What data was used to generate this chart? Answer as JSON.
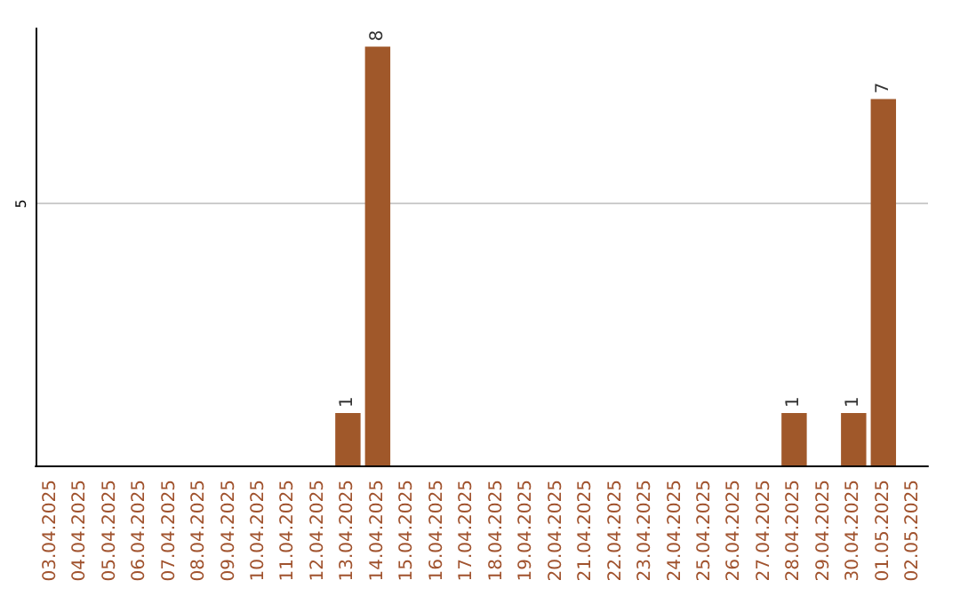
{
  "chart_data": {
    "type": "bar",
    "categories": [
      "03.04.2025",
      "04.04.2025",
      "05.04.2025",
      "06.04.2025",
      "07.04.2025",
      "08.04.2025",
      "09.04.2025",
      "10.04.2025",
      "11.04.2025",
      "12.04.2025",
      "13.04.2025",
      "14.04.2025",
      "15.04.2025",
      "16.04.2025",
      "17.04.2025",
      "18.04.2025",
      "19.04.2025",
      "20.04.2025",
      "21.04.2025",
      "22.04.2025",
      "23.04.2025",
      "24.04.2025",
      "25.04.2025",
      "26.04.2025",
      "27.04.2025",
      "28.04.2025",
      "29.04.2025",
      "30.04.2025",
      "01.05.2025",
      "02.05.2025"
    ],
    "values": [
      0,
      0,
      0,
      0,
      0,
      0,
      0,
      0,
      0,
      0,
      1,
      8,
      0,
      0,
      0,
      0,
      0,
      0,
      0,
      0,
      0,
      0,
      0,
      0,
      0,
      1,
      0,
      1,
      7,
      0
    ],
    "value_labels": [
      null,
      null,
      null,
      null,
      null,
      null,
      null,
      null,
      null,
      null,
      "1",
      "8",
      null,
      null,
      null,
      null,
      null,
      null,
      null,
      null,
      null,
      null,
      null,
      null,
      null,
      "1",
      null,
      "1",
      "7",
      null
    ],
    "color": "#a0582a",
    "ylim": [
      0,
      8.35
    ],
    "yticks": [
      5
    ],
    "grid": "y"
  }
}
